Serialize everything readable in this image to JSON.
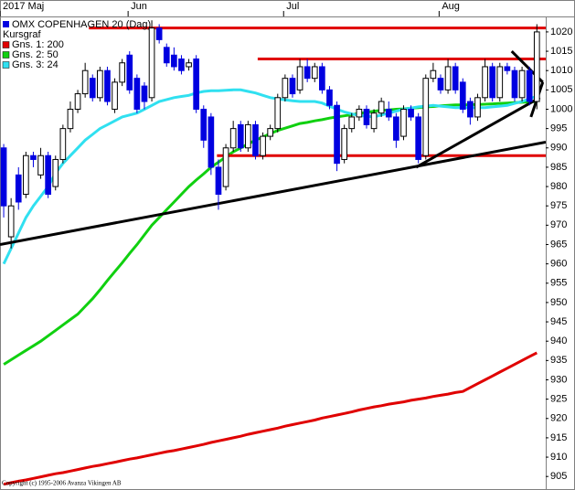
{
  "chart_data": {
    "type": "candlestick",
    "title": "OMX COPENHAGEN 20 (Dag)",
    "subtitle": "Kursgraf",
    "title_color": "#0000e0",
    "up_color": "#ffffff",
    "down_color": "#0000e0",
    "open": [
      990,
      967,
      983,
      978,
      988,
      983,
      988,
      980,
      987,
      995,
      1000,
      1004,
      1008,
      1003,
      1010,
      1000,
      1007,
      1014,
      1008,
      1006,
      1003,
      1021,
      1016,
      1014,
      1013,
      1011,
      1013,
      1000,
      998,
      985,
      980,
      990,
      996,
      990,
      996,
      988,
      993,
      995,
      1003,
      1008,
      1005,
      1011,
      1008,
      1011,
      1005,
      1001,
      987,
      995,
      998,
      1000,
      995,
      999,
      1000,
      998,
      993,
      1000,
      998,
      988,
      1008,
      1008,
      1005,
      1011,
      1007,
      1002,
      998,
      1003,
      1011,
      1003,
      1011,
      1010,
      1003,
      1010,
      1002
    ],
    "high": [
      991,
      977,
      985,
      989,
      989,
      990,
      989,
      988,
      996,
      1002,
      1005,
      1012,
      1009,
      1011,
      1011,
      1008,
      1013,
      1015,
      1009,
      1007,
      1023,
      1022,
      1017,
      1016,
      1014,
      1013,
      1014,
      1001,
      999,
      987,
      991,
      997,
      997,
      997,
      997,
      994,
      996,
      1004,
      1009,
      1009,
      1013,
      1013,
      1012,
      1012,
      1006,
      1002,
      996,
      999,
      1001,
      1001,
      1000,
      1003,
      1002,
      999,
      1001,
      1001,
      999,
      1009,
      1012,
      1009,
      1013,
      1012,
      1008,
      1003,
      1004,
      1013,
      1012,
      1012,
      1012,
      1011,
      1011,
      1011,
      1022
    ],
    "low": [
      972,
      964,
      974,
      977,
      985,
      982,
      977,
      979,
      986,
      994,
      999,
      1003,
      1002,
      1002,
      1001,
      999,
      1006,
      1004,
      999,
      1000,
      1002,
      1017,
      1011,
      1010,
      1009,
      1010,
      999,
      990,
      983,
      974,
      979,
      989,
      989,
      989,
      987,
      987,
      992,
      994,
      1002,
      1003,
      1004,
      1007,
      1007,
      1004,
      1000,
      984,
      986,
      994,
      997,
      995,
      994,
      998,
      997,
      990,
      992,
      997,
      986,
      987,
      1007,
      1004,
      1004,
      1004,
      999,
      996,
      997,
      1002,
      1002,
      1002,
      1009,
      1002,
      1002,
      1001,
      1000
    ],
    "close": [
      975,
      975,
      976,
      988,
      987,
      988,
      978,
      987,
      995,
      1000,
      1004,
      1010,
      1003,
      1010,
      1002,
      1007,
      1012,
      1005,
      1000,
      1002,
      1021,
      1018,
      1012,
      1011,
      1010,
      1012,
      1000,
      992,
      985,
      978,
      990,
      995,
      990,
      996,
      988,
      993,
      995,
      1003,
      1008,
      1004,
      1011,
      1008,
      1011,
      1005,
      1001,
      986,
      995,
      998,
      1000,
      996,
      999,
      1002,
      998,
      992,
      1000,
      998,
      987,
      1008,
      1010,
      1005,
      1011,
      1005,
      1000,
      998,
      1003,
      1011,
      1003,
      1011,
      1010,
      1003,
      1010,
      1002,
      1020
    ],
    "series": [
      {
        "name": "Gns. 1: 200",
        "color": "#e00000",
        "values": [
          903,
          903.4,
          903.8,
          904.1,
          904.5,
          904.9,
          905.3,
          905.7,
          906,
          906.4,
          906.8,
          907.2,
          907.6,
          907.9,
          908.3,
          908.7,
          909.1,
          909.5,
          909.8,
          910.2,
          910.6,
          911,
          911.4,
          911.7,
          912.1,
          912.5,
          912.9,
          913.3,
          913.8,
          914.2,
          914.6,
          915,
          915.4,
          915.9,
          916.3,
          916.7,
          917.1,
          917.5,
          918,
          918.4,
          918.8,
          919.2,
          919.6,
          920.1,
          920.5,
          920.9,
          921.3,
          921.7,
          922.2,
          922.6,
          923,
          923.3,
          923.7,
          924,
          924.3,
          924.7,
          925,
          925.3,
          925.7,
          926,
          926.3,
          926.7,
          927,
          928,
          929,
          930,
          931,
          932,
          933,
          934,
          935,
          936,
          937
        ]
      },
      {
        "name": "Gns. 2: 50",
        "color": "#10d010",
        "values": [
          934,
          935.2,
          936.4,
          937.6,
          938.8,
          940,
          941.4,
          942.8,
          944.2,
          945.6,
          947,
          949,
          951,
          953.3,
          955.7,
          958,
          960.3,
          962.7,
          965,
          967.5,
          970,
          972,
          974,
          976,
          978,
          980,
          981.7,
          983.3,
          985,
          986.3,
          987.7,
          989,
          990,
          991,
          992,
          992.8,
          993.7,
          994.5,
          995.1,
          995.7,
          996.3,
          996.6,
          997,
          997.3,
          997.7,
          998,
          998.3,
          998.6,
          998.9,
          999.2,
          999.5,
          999.7,
          999.8,
          1000,
          1000.1,
          1000.3,
          1000.4,
          1000.6,
          1000.7,
          1000.9,
          1001,
          1001.1,
          1001.1,
          1001.2,
          1001.2,
          1001.3,
          1001.4,
          1001.5,
          1001.6,
          1001.7,
          1001.8,
          1001.9,
          1002
        ]
      },
      {
        "name": "Gns. 3: 24",
        "color": "#30e0f0",
        "values": [
          960,
          964,
          968,
          972,
          975,
          977.5,
          980,
          983.5,
          986,
          988,
          990,
          992,
          993.5,
          995,
          996,
          997,
          998,
          998.5,
          999,
          1000,
          1001,
          1002,
          1002.5,
          1003,
          1003.3,
          1003.6,
          1004.2,
          1004.6,
          1004.8,
          1004.8,
          1004.9,
          1005,
          1005,
          1004.6,
          1004.2,
          1003.6,
          1003,
          1002.7,
          1002.4,
          1002.2,
          1002,
          1002,
          1002,
          1001.6,
          1000.8,
          1000,
          999.3,
          998.8,
          998.4,
          998.2,
          998,
          998.5,
          999,
          999.5,
          1000,
          1000.3,
          1000.6,
          1000.8,
          1001,
          1000.8,
          1000.6,
          1000.4,
          1000.4,
          1000.4,
          1000.4,
          1000.4,
          1000.6,
          1000.8,
          1001,
          1001.5,
          1002,
          1002.7,
          1003.4
        ]
      }
    ],
    "drawings": [
      {
        "color": "#e00000",
        "x": [
          11.5,
          73.2
        ],
        "y": [
          1021,
          1021
        ]
      },
      {
        "color": "#e00000",
        "x": [
          34.3,
          73.2
        ],
        "y": [
          1013,
          1013
        ]
      },
      {
        "color": "#e00000",
        "x": [
          28.8,
          73.2
        ],
        "y": [
          988,
          988
        ]
      },
      {
        "color": "#000000",
        "x": [
          -0.5,
          73.2
        ],
        "y": [
          965,
          991.5
        ]
      },
      {
        "color": "#000000",
        "x": [
          55.7,
          72.4
        ],
        "y": [
          985,
          1003
        ]
      },
      {
        "color": "#000000",
        "x": [
          68.6,
          72.8
        ],
        "y": [
          1015,
          1007
        ]
      },
      {
        "color": "#000000",
        "x": [
          72.8,
          71.2
        ],
        "y": [
          1007,
          998
        ]
      }
    ],
    "xlim": [
      -0.5,
      73.2
    ],
    "xticks": [
      {
        "value": -0.5,
        "label": "2017 Maj"
      },
      {
        "value": 16.8,
        "label": "Jun"
      },
      {
        "value": 37.8,
        "label": "Jul"
      },
      {
        "value": 58.8,
        "label": "Aug"
      }
    ],
    "ylim": [
      901.5,
      1024
    ],
    "yticks": [
      905,
      910,
      915,
      920,
      925,
      930,
      935,
      940,
      945,
      950,
      955,
      960,
      965,
      970,
      975,
      980,
      985,
      990,
      995,
      1000,
      1005,
      1010,
      1015,
      1020
    ],
    "copyright": "Copyright (c) 1995-2006 Avanza Vikingen AB"
  }
}
